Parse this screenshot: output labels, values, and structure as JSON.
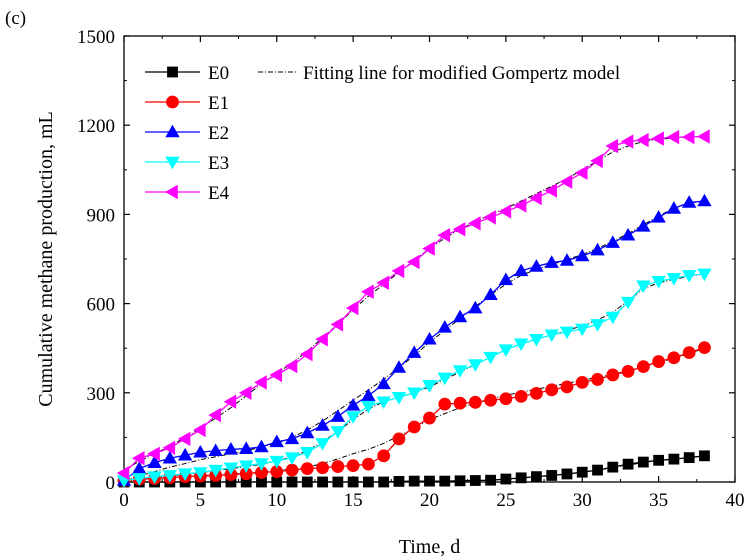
{
  "panel_label": "(c)",
  "chart_data": {
    "type": "line",
    "xlabel": "Time, d",
    "ylabel": "Cumulative methane production, mL",
    "xlim": [
      0,
      40
    ],
    "ylim": [
      0,
      1500
    ],
    "xticks": [
      0,
      5,
      10,
      15,
      20,
      25,
      30,
      35,
      40
    ],
    "yticks": [
      0,
      300,
      600,
      900,
      1200,
      1500
    ],
    "grid": false,
    "legend_position": "top-left",
    "x": [
      0,
      1,
      2,
      3,
      4,
      5,
      6,
      7,
      8,
      9,
      10,
      11,
      12,
      13,
      14,
      15,
      16,
      17,
      18,
      19,
      20,
      21,
      22,
      23,
      24,
      25,
      26,
      27,
      28,
      29,
      30,
      31,
      32,
      33,
      34,
      35,
      36,
      37,
      38
    ],
    "series": [
      {
        "name": "E0",
        "marker": "square",
        "color": "#000000",
        "values": [
          0,
          0,
          0,
          0,
          0,
          0,
          0,
          0,
          0,
          0,
          0,
          0,
          0,
          0,
          0,
          0,
          0,
          0,
          2,
          3,
          3,
          3,
          4,
          5,
          6,
          10,
          14,
          18,
          22,
          27,
          33,
          40,
          50,
          60,
          67,
          73,
          77,
          82,
          88
        ]
      },
      {
        "name": "E1",
        "marker": "circle",
        "color": "#ff0000",
        "values": [
          5,
          10,
          12,
          15,
          18,
          20,
          22,
          25,
          28,
          32,
          35,
          40,
          45,
          48,
          52,
          55,
          60,
          88,
          145,
          185,
          215,
          262,
          265,
          268,
          275,
          280,
          288,
          298,
          310,
          320,
          335,
          345,
          360,
          372,
          388,
          405,
          418,
          435,
          452
        ]
      },
      {
        "name": "E2",
        "marker": "triangle-up",
        "color": "#0000ff",
        "values": [
          5,
          45,
          65,
          80,
          90,
          100,
          105,
          110,
          112,
          118,
          135,
          145,
          165,
          190,
          220,
          258,
          290,
          330,
          385,
          435,
          480,
          520,
          555,
          585,
          630,
          680,
          710,
          725,
          738,
          745,
          760,
          780,
          805,
          830,
          860,
          890,
          920,
          940,
          945
        ]
      },
      {
        "name": "E3",
        "marker": "triangle-down",
        "color": "#00ffff",
        "values": [
          5,
          12,
          18,
          22,
          28,
          32,
          40,
          48,
          55,
          62,
          70,
          82,
          100,
          130,
          170,
          220,
          255,
          270,
          285,
          300,
          325,
          350,
          375,
          395,
          420,
          445,
          465,
          480,
          495,
          505,
          515,
          530,
          555,
          605,
          660,
          675,
          685,
          695,
          700
        ]
      },
      {
        "name": "E4",
        "marker": "triangle-left",
        "color": "#ff00ff",
        "values": [
          30,
          80,
          95,
          115,
          145,
          175,
          225,
          270,
          300,
          335,
          360,
          390,
          430,
          480,
          530,
          585,
          640,
          670,
          710,
          740,
          785,
          830,
          850,
          870,
          890,
          910,
          930,
          955,
          980,
          1010,
          1040,
          1080,
          1130,
          1145,
          1150,
          1155,
          1160,
          1160,
          1162
        ]
      }
    ],
    "fit_series": {
      "name": "Fitting line for modified Gompertz model",
      "style": "dash-dot",
      "color": "#000000",
      "curves": [
        [
          0,
          0,
          0,
          0,
          0,
          0,
          0,
          0,
          0,
          0,
          0,
          0,
          0,
          0,
          0,
          0,
          0,
          0,
          1,
          2,
          3,
          3,
          4,
          5,
          6,
          9,
          13,
          17,
          22,
          27,
          33,
          40,
          48,
          57,
          65,
          72,
          77,
          82,
          88
        ],
        [
          3,
          8,
          12,
          15,
          18,
          21,
          24,
          27,
          30,
          34,
          38,
          43,
          50,
          62,
          78,
          95,
          110,
          130,
          155,
          180,
          210,
          230,
          250,
          265,
          280,
          292,
          302,
          312,
          322,
          332,
          342,
          352,
          362,
          374,
          388,
          402,
          416,
          432,
          450
        ],
        [
          5,
          20,
          35,
          50,
          62,
          75,
          85,
          95,
          105,
          118,
          130,
          150,
          175,
          205,
          240,
          275,
          310,
          345,
          385,
          425,
          470,
          510,
          550,
          590,
          630,
          665,
          695,
          715,
          732,
          748,
          765,
          785,
          810,
          835,
          865,
          895,
          920,
          938,
          945
        ],
        [
          5,
          10,
          15,
          20,
          26,
          32,
          38,
          45,
          52,
          60,
          70,
          85,
          105,
          135,
          170,
          210,
          245,
          270,
          285,
          300,
          320,
          345,
          370,
          395,
          420,
          445,
          465,
          480,
          495,
          510,
          525,
          545,
          570,
          610,
          650,
          670,
          682,
          692,
          700
        ],
        [
          40,
          70,
          95,
          120,
          150,
          180,
          215,
          250,
          290,
          330,
          365,
          400,
          440,
          485,
          530,
          580,
          625,
          665,
          705,
          745,
          785,
          820,
          850,
          875,
          900,
          920,
          945,
          970,
          995,
          1020,
          1050,
          1080,
          1110,
          1130,
          1145,
          1152,
          1157,
          1160,
          1162
        ]
      ]
    }
  }
}
